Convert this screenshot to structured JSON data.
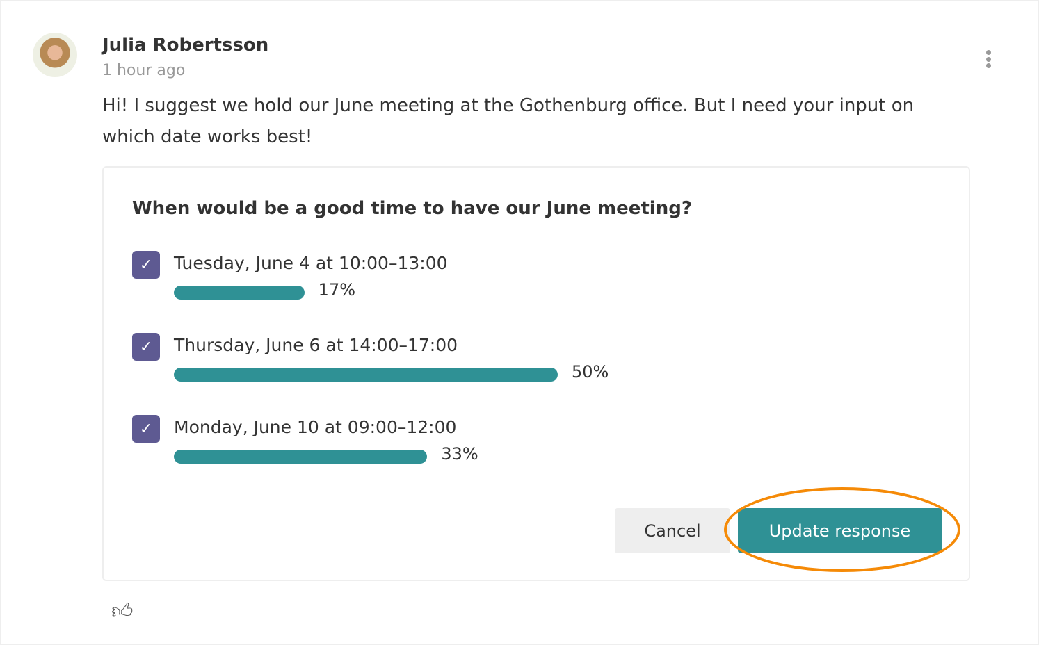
{
  "post": {
    "author": "Julia Robertsson",
    "time": "1 hour ago",
    "message": "Hi! I suggest we hold our June meeting at the Gothenburg office. But I need your input on which date works best!"
  },
  "poll": {
    "question": "When would be a good time to have our June meeting?",
    "options": [
      {
        "label": "Tuesday, June 4 at 10:00–13:00",
        "percent_label": "17%",
        "percent": 17,
        "checked": true
      },
      {
        "label": "Thursday, June 6 at 14:00–17:00",
        "percent_label": "50%",
        "percent": 50,
        "checked": true
      },
      {
        "label": "Monday, June 10 at 09:00–12:00",
        "percent_label": "33%",
        "percent": 33,
        "checked": true
      }
    ],
    "cancel_label": "Cancel",
    "update_label": "Update response"
  },
  "colors": {
    "accent": "#2f9195",
    "checkbox": "#5e5a92",
    "highlight": "#f58a07"
  }
}
